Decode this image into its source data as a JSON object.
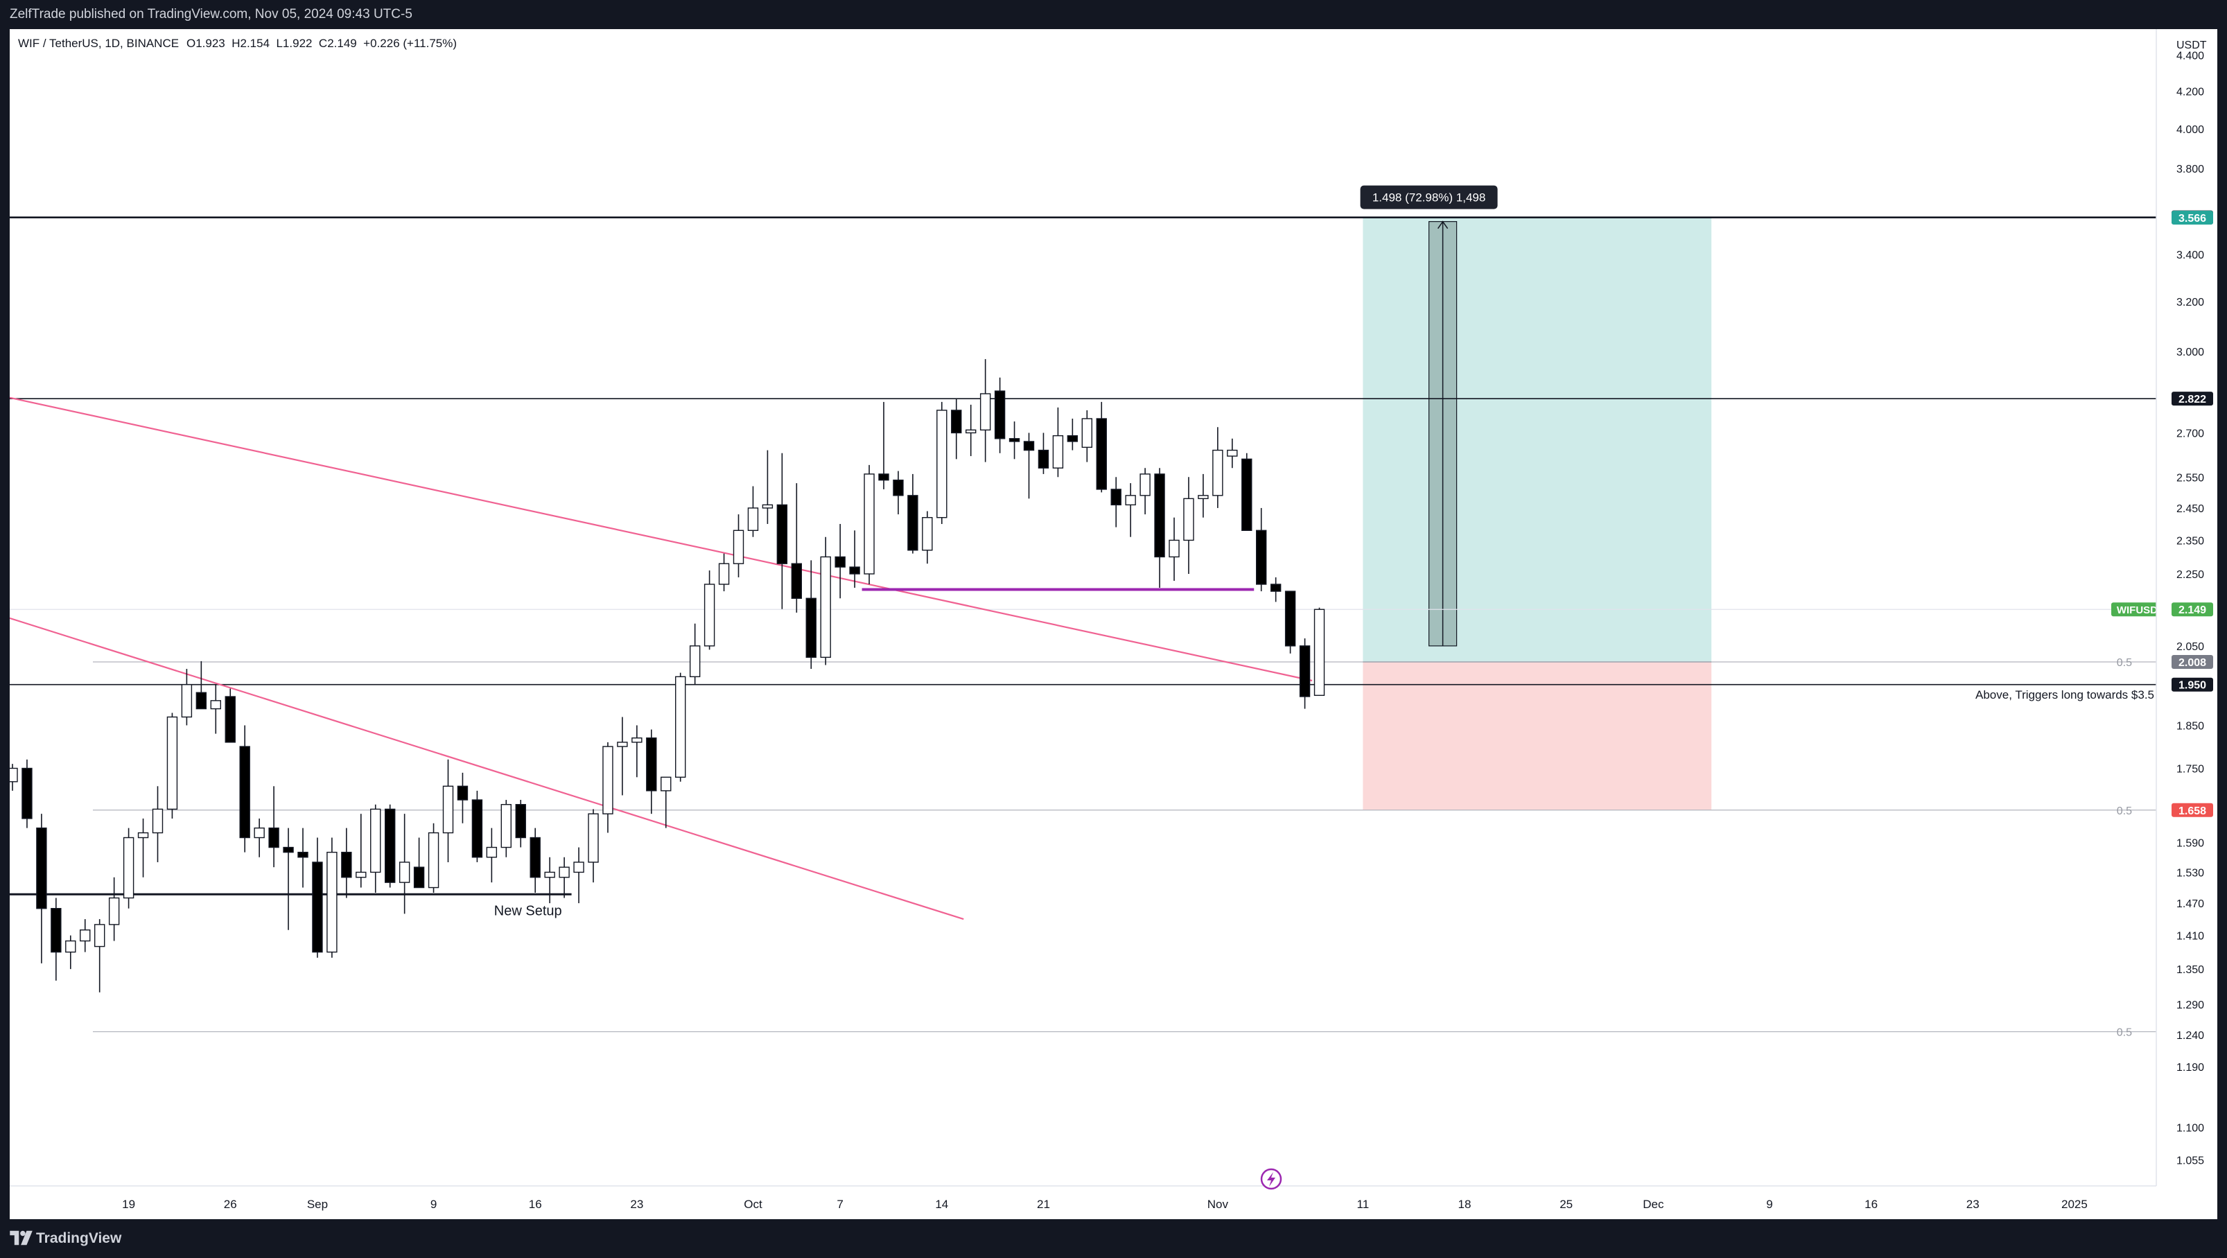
{
  "header": {
    "published": "ZelfTrade published on TradingView.com, Nov 05, 2024 09:43 UTC-5"
  },
  "footer": {
    "brand": "TradingView"
  },
  "chart_data": {
    "type": "candlestick",
    "symbol_line": "WIF / TetherUS, 1D, BINANCE",
    "ohlc_line": "O1.923  H2.154  L1.922  C2.149  +0.226 (+11.75%)",
    "currency": "USDT",
    "y_scale": "log",
    "ylim": [
      1.02,
      4.55
    ],
    "y_ticks": [
      {
        "v": 4.4,
        "label": "4.400"
      },
      {
        "v": 4.2,
        "label": "4.200"
      },
      {
        "v": 4.0,
        "label": "4.000"
      },
      {
        "v": 3.8,
        "label": "3.800"
      },
      {
        "v": 3.4,
        "label": "3.400"
      },
      {
        "v": 3.2,
        "label": "3.200"
      },
      {
        "v": 3.0,
        "label": "3.000"
      },
      {
        "v": 2.7,
        "label": "2.700"
      },
      {
        "v": 2.55,
        "label": "2.550"
      },
      {
        "v": 2.45,
        "label": "2.450"
      },
      {
        "v": 2.35,
        "label": "2.350"
      },
      {
        "v": 2.25,
        "label": "2.250"
      },
      {
        "v": 2.05,
        "label": "2.050"
      },
      {
        "v": 1.85,
        "label": "1.850"
      },
      {
        "v": 1.75,
        "label": "1.750"
      },
      {
        "v": 1.59,
        "label": "1.590"
      },
      {
        "v": 1.53,
        "label": "1.530"
      },
      {
        "v": 1.47,
        "label": "1.470"
      },
      {
        "v": 1.41,
        "label": "1.410"
      },
      {
        "v": 1.35,
        "label": "1.350"
      },
      {
        "v": 1.29,
        "label": "1.290"
      },
      {
        "v": 1.24,
        "label": "1.240"
      },
      {
        "v": 1.19,
        "label": "1.190"
      },
      {
        "v": 1.1,
        "label": "1.100"
      },
      {
        "v": 1.055,
        "label": "1.055"
      }
    ],
    "x_ticks": [
      {
        "i": 8,
        "label": "19"
      },
      {
        "i": 15,
        "label": "26"
      },
      {
        "i": 21,
        "label": "Sep"
      },
      {
        "i": 29,
        "label": "9"
      },
      {
        "i": 36,
        "label": "16"
      },
      {
        "i": 43,
        "label": "23"
      },
      {
        "i": 51,
        "label": "Oct"
      },
      {
        "i": 57,
        "label": "7"
      },
      {
        "i": 64,
        "label": "14"
      },
      {
        "i": 71,
        "label": "21"
      },
      {
        "i": 83,
        "label": "Nov"
      },
      {
        "i": 93,
        "label": "11"
      },
      {
        "i": 100,
        "label": "18"
      },
      {
        "i": 107,
        "label": "25"
      },
      {
        "i": 113,
        "label": "Dec"
      },
      {
        "i": 121,
        "label": "9"
      },
      {
        "i": 128,
        "label": "16"
      },
      {
        "i": 135,
        "label": "23"
      },
      {
        "i": 142,
        "label": "2025"
      }
    ],
    "candles": [
      [
        1.72,
        1.76,
        1.7,
        1.75
      ],
      [
        1.75,
        1.77,
        1.62,
        1.64
      ],
      [
        1.62,
        1.65,
        1.36,
        1.46
      ],
      [
        1.46,
        1.48,
        1.33,
        1.38
      ],
      [
        1.38,
        1.41,
        1.35,
        1.4
      ],
      [
        1.4,
        1.44,
        1.38,
        1.42
      ],
      [
        1.39,
        1.44,
        1.31,
        1.43
      ],
      [
        1.43,
        1.52,
        1.4,
        1.48
      ],
      [
        1.48,
        1.62,
        1.46,
        1.6
      ],
      [
        1.6,
        1.64,
        1.52,
        1.61
      ],
      [
        1.61,
        1.71,
        1.55,
        1.66
      ],
      [
        1.66,
        1.88,
        1.64,
        1.87
      ],
      [
        1.87,
        1.99,
        1.85,
        1.95
      ],
      [
        1.93,
        2.01,
        1.9,
        1.89
      ],
      [
        1.89,
        1.95,
        1.83,
        1.91
      ],
      [
        1.92,
        1.94,
        1.81,
        1.81
      ],
      [
        1.8,
        1.85,
        1.57,
        1.6
      ],
      [
        1.6,
        1.64,
        1.56,
        1.62
      ],
      [
        1.62,
        1.71,
        1.54,
        1.58
      ],
      [
        1.58,
        1.62,
        1.42,
        1.57
      ],
      [
        1.57,
        1.62,
        1.5,
        1.56
      ],
      [
        1.55,
        1.6,
        1.37,
        1.38
      ],
      [
        1.38,
        1.6,
        1.37,
        1.57
      ],
      [
        1.57,
        1.62,
        1.48,
        1.52
      ],
      [
        1.52,
        1.65,
        1.5,
        1.53
      ],
      [
        1.53,
        1.67,
        1.49,
        1.66
      ],
      [
        1.66,
        1.67,
        1.5,
        1.51
      ],
      [
        1.51,
        1.65,
        1.45,
        1.55
      ],
      [
        1.54,
        1.6,
        1.5,
        1.5
      ],
      [
        1.5,
        1.63,
        1.49,
        1.61
      ],
      [
        1.61,
        1.77,
        1.55,
        1.71
      ],
      [
        1.71,
        1.74,
        1.63,
        1.68
      ],
      [
        1.68,
        1.7,
        1.55,
        1.56
      ],
      [
        1.56,
        1.62,
        1.51,
        1.58
      ],
      [
        1.58,
        1.68,
        1.56,
        1.67
      ],
      [
        1.67,
        1.68,
        1.58,
        1.6
      ],
      [
        1.6,
        1.62,
        1.49,
        1.52
      ],
      [
        1.52,
        1.56,
        1.47,
        1.53
      ],
      [
        1.52,
        1.56,
        1.48,
        1.54
      ],
      [
        1.53,
        1.58,
        1.47,
        1.55
      ],
      [
        1.55,
        1.66,
        1.51,
        1.65
      ],
      [
        1.65,
        1.81,
        1.61,
        1.8
      ],
      [
        1.8,
        1.87,
        1.69,
        1.81
      ],
      [
        1.81,
        1.85,
        1.73,
        1.82
      ],
      [
        1.82,
        1.84,
        1.65,
        1.7
      ],
      [
        1.7,
        1.73,
        1.62,
        1.73
      ],
      [
        1.73,
        1.98,
        1.72,
        1.97
      ],
      [
        1.97,
        2.11,
        1.95,
        2.05
      ],
      [
        2.05,
        2.26,
        2.04,
        2.22
      ],
      [
        2.22,
        2.31,
        2.2,
        2.28
      ],
      [
        2.28,
        2.43,
        2.24,
        2.38
      ],
      [
        2.38,
        2.52,
        2.36,
        2.45
      ],
      [
        2.45,
        2.64,
        2.4,
        2.46
      ],
      [
        2.46,
        2.63,
        2.15,
        2.28
      ],
      [
        2.28,
        2.53,
        2.14,
        2.18
      ],
      [
        2.18,
        2.29,
        1.99,
        2.02
      ],
      [
        2.02,
        2.36,
        2.0,
        2.3
      ],
      [
        2.3,
        2.4,
        2.18,
        2.27
      ],
      [
        2.27,
        2.38,
        2.21,
        2.25
      ],
      [
        2.25,
        2.59,
        2.22,
        2.56
      ],
      [
        2.56,
        2.81,
        2.51,
        2.54
      ],
      [
        2.54,
        2.57,
        2.43,
        2.49
      ],
      [
        2.49,
        2.56,
        2.31,
        2.32
      ],
      [
        2.32,
        2.44,
        2.28,
        2.42
      ],
      [
        2.42,
        2.81,
        2.4,
        2.78
      ],
      [
        2.78,
        2.82,
        2.61,
        2.7
      ],
      [
        2.7,
        2.8,
        2.62,
        2.71
      ],
      [
        2.71,
        2.97,
        2.6,
        2.84
      ],
      [
        2.85,
        2.9,
        2.63,
        2.68
      ],
      [
        2.68,
        2.74,
        2.61,
        2.67
      ],
      [
        2.67,
        2.7,
        2.48,
        2.64
      ],
      [
        2.64,
        2.7,
        2.56,
        2.58
      ],
      [
        2.58,
        2.79,
        2.55,
        2.69
      ],
      [
        2.69,
        2.75,
        2.64,
        2.67
      ],
      [
        2.65,
        2.78,
        2.6,
        2.75
      ],
      [
        2.75,
        2.81,
        2.5,
        2.51
      ],
      [
        2.51,
        2.55,
        2.39,
        2.46
      ],
      [
        2.46,
        2.53,
        2.36,
        2.49
      ],
      [
        2.49,
        2.58,
        2.43,
        2.56
      ],
      [
        2.56,
        2.58,
        2.21,
        2.3
      ],
      [
        2.3,
        2.42,
        2.23,
        2.35
      ],
      [
        2.35,
        2.55,
        2.25,
        2.48
      ],
      [
        2.48,
        2.56,
        2.42,
        2.49
      ],
      [
        2.49,
        2.72,
        2.45,
        2.64
      ],
      [
        2.62,
        2.68,
        2.58,
        2.64
      ],
      [
        2.61,
        2.63,
        2.38,
        2.38
      ],
      [
        2.38,
        2.45,
        2.2,
        2.22
      ],
      [
        2.22,
        2.24,
        2.17,
        2.2
      ],
      [
        2.2,
        2.2,
        2.03,
        2.05
      ],
      [
        2.05,
        2.07,
        1.89,
        1.92
      ],
      [
        1.923,
        2.154,
        1.922,
        2.149
      ]
    ],
    "levels": [
      {
        "name": "upper-resistance",
        "v": 2.822,
        "label": "2.822",
        "color": "#131722"
      },
      {
        "name": "trigger-line",
        "v": 1.95,
        "label": "1.950",
        "color": "#131722"
      },
      {
        "name": "target-line",
        "v": 3.567,
        "label": "3.567",
        "color": "#131722"
      }
    ],
    "fib_lines": [
      {
        "v": 2.008,
        "label": "0.5"
      },
      {
        "v": 1.658,
        "label": "0.5"
      },
      {
        "v": 1.245,
        "label": "0.5"
      }
    ],
    "price_tags": [
      {
        "v": 3.567,
        "label": "3.567",
        "bg": "#131722",
        "fg": "#ffffff"
      },
      {
        "v": 3.566,
        "label": "3.566",
        "bg": "#26a69a",
        "fg": "#ffffff"
      },
      {
        "v": 2.822,
        "label": "2.822",
        "bg": "#131722",
        "fg": "#ffffff"
      },
      {
        "v": 2.149,
        "label": "2.149",
        "bg": "#4caf50",
        "fg": "#ffffff"
      },
      {
        "v": 2.008,
        "label": "2.008",
        "bg": "#787b86",
        "fg": "#ffffff"
      },
      {
        "v": 1.95,
        "label": "1.950",
        "bg": "#131722",
        "fg": "#ffffff"
      },
      {
        "v": 1.658,
        "label": "1.658",
        "bg": "#ef5350",
        "fg": "#ffffff"
      }
    ],
    "symbol_tag": {
      "label": "WIFUSDT",
      "v": 2.149,
      "bg": "#4caf50"
    },
    "long_position": {
      "start": 93,
      "end": 117,
      "entry": 2.008,
      "target": 3.566,
      "stop": 1.658,
      "profit_color": "#26a69a",
      "loss_color": "#ef5350"
    },
    "measure": {
      "i": 98.5,
      "from": 2.05,
      "to": 3.548,
      "label": "1.498 (72.98%) 1,498"
    },
    "trendlines": [
      {
        "i1": -1,
        "v1": 2.835,
        "i2": 89.5,
        "v2": 1.96,
        "color": "#f06292"
      },
      {
        "i1": -1,
        "v1": 2.135,
        "i2": 65.5,
        "v2": 1.44,
        "color": "#f06292"
      },
      {
        "i1": 58.5,
        "v1": 2.205,
        "i2": 85.5,
        "v2": 2.205,
        "color": "#9c27b0"
      },
      {
        "i1": -1,
        "v1": 1.487,
        "i2": 38.5,
        "v2": 1.487,
        "color": "#131722"
      }
    ],
    "annotations": {
      "new_setup": {
        "i": 35.5,
        "v": 1.455,
        "label": "New Setup"
      },
      "trigger": {
        "v": 1.925,
        "label": "Above, Triggers long towards $3.5"
      }
    },
    "colors": {
      "up_body": "#ffffff",
      "down_body": "#000000",
      "wick": "#131722",
      "grid": "#e0e3eb",
      "axis_text": "#131722"
    }
  }
}
